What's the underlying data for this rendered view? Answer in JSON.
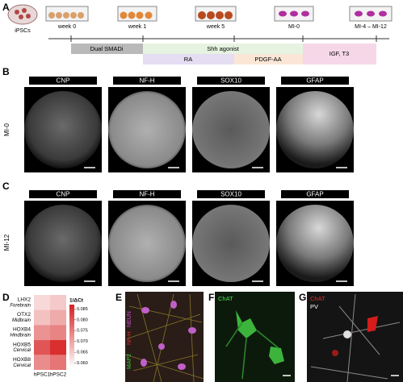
{
  "panel_labels": [
    "A",
    "B",
    "C",
    "D",
    "E",
    "F",
    "G"
  ],
  "panel_a": {
    "stages": [
      "iPSCs",
      "week 0",
      "week 1",
      "week 5",
      "MI-0",
      "MI-4 – MI-12"
    ],
    "treatments": [
      "Dual SMADi",
      "Shh agonist",
      "RA",
      "PDGF-AA",
      "IGF, T3"
    ]
  },
  "panel_b": {
    "row_label": "MI-0",
    "markers": [
      "CNP",
      "NF-H",
      "SOX10",
      "GFAP"
    ]
  },
  "panel_c": {
    "row_label": "MI-12",
    "markers": [
      "CNP",
      "NF-H",
      "SOX10",
      "GFAP"
    ]
  },
  "panel_d": {
    "type": "heatmap",
    "rows": [
      {
        "gene": "LHX2",
        "region": "Forebrain"
      },
      {
        "gene": "OTX2",
        "region": "Midbrain"
      },
      {
        "gene": "HOXB4",
        "region": "Hindbrain"
      },
      {
        "gene": "HOXB5",
        "region": "Cervical"
      },
      {
        "gene": "HOXB8",
        "region": "Cervical"
      }
    ],
    "columns": [
      "hPSC1",
      "hPSC2"
    ],
    "values": [
      [
        0.063,
        0.065
      ],
      [
        0.066,
        0.069
      ],
      [
        0.072,
        0.074
      ],
      [
        0.08,
        0.085
      ],
      [
        0.073,
        0.076
      ]
    ],
    "colorbar_title": "1/ΔCt",
    "clim": [
      0.058,
      0.087
    ],
    "ticks": [
      0.085,
      {
        "value": 0.08,
        "label": "0.080"
      },
      0.075,
      {
        "value": 0.07,
        "label": "0.070"
      },
      0.065,
      {
        "value": 0.06,
        "label": "0.060"
      }
    ],
    "colors": [
      "#ffffff",
      "#d62020"
    ]
  },
  "panel_e": {
    "channels": [
      "MAP2",
      "NF-H",
      "NEUN"
    ]
  },
  "panel_f": {
    "channels": [
      "ChAT"
    ]
  },
  "panel_g": {
    "channels": [
      "ChAT",
      "PV"
    ]
  }
}
